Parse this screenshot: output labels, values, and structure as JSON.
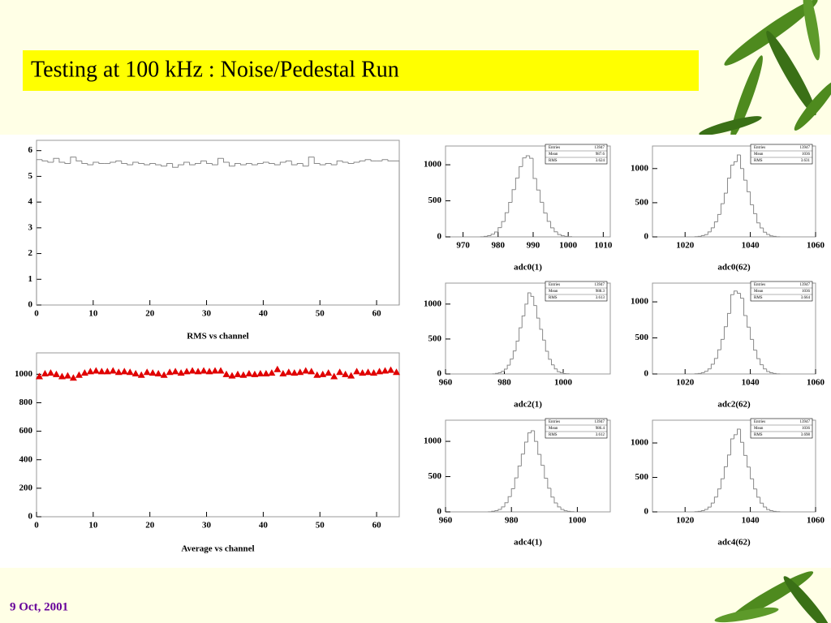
{
  "title": "Testing at 100 kHz : Noise/Pedestal Run",
  "date": "9 Oct, 2001",
  "chart_data": [
    {
      "type": "histogram",
      "x_label": "RMS vs channel",
      "color": "#888888",
      "bins": [
        0,
        1,
        2,
        3,
        4,
        5,
        6,
        7,
        8,
        9,
        10,
        11,
        12,
        13,
        14,
        15,
        16,
        17,
        18,
        19,
        20,
        21,
        22,
        23,
        24,
        25,
        26,
        27,
        28,
        29,
        30,
        31,
        32,
        33,
        34,
        35,
        36,
        37,
        38,
        39,
        40,
        41,
        42,
        43,
        44,
        45,
        46,
        47,
        48,
        49,
        50,
        51,
        52,
        53,
        54,
        55,
        56,
        57,
        58,
        59,
        60,
        61,
        62,
        63,
        64
      ],
      "counts": [
        5.65,
        5.6,
        5.55,
        5.7,
        5.55,
        5.5,
        5.75,
        5.6,
        5.5,
        5.45,
        5.55,
        5.5,
        5.5,
        5.55,
        5.6,
        5.5,
        5.45,
        5.55,
        5.5,
        5.45,
        5.5,
        5.45,
        5.4,
        5.5,
        5.35,
        5.45,
        5.55,
        5.45,
        5.5,
        5.6,
        5.5,
        5.45,
        5.7,
        5.55,
        5.4,
        5.5,
        5.45,
        5.5,
        5.45,
        5.5,
        5.55,
        5.5,
        5.45,
        5.55,
        5.6,
        5.45,
        5.5,
        5.4,
        5.75,
        5.5,
        5.45,
        5.5,
        5.45,
        5.6,
        5.55,
        5.5,
        5.55,
        5.6,
        5.65,
        5.6,
        5.6,
        5.65,
        5.6,
        5.6
      ],
      "xlim": [
        0,
        64
      ],
      "xticks": [
        0,
        10,
        20,
        30,
        40,
        50,
        60
      ],
      "ylim": [
        0,
        6.4
      ],
      "yticks": [
        0,
        1,
        2,
        3,
        4,
        5,
        6
      ]
    },
    {
      "type": "scatter",
      "x_label": "Average vs channel",
      "color": "#e00000",
      "x": [
        0.5,
        1.5,
        2.5,
        3.5,
        4.5,
        5.5,
        6.5,
        7.5,
        8.5,
        9.5,
        10.5,
        11.5,
        12.5,
        13.5,
        14.5,
        15.5,
        16.5,
        17.5,
        18.5,
        19.5,
        20.5,
        21.5,
        22.5,
        23.5,
        24.5,
        25.5,
        26.5,
        27.5,
        28.5,
        29.5,
        30.5,
        31.5,
        32.5,
        33.5,
        34.5,
        35.5,
        36.5,
        37.5,
        38.5,
        39.5,
        40.5,
        41.5,
        42.5,
        43.5,
        44.5,
        45.5,
        46.5,
        47.5,
        48.5,
        49.5,
        50.5,
        51.5,
        52.5,
        53.5,
        54.5,
        55.5,
        56.5,
        57.5,
        58.5,
        59.5,
        60.5,
        61.5,
        62.5,
        63.5
      ],
      "values": [
        985,
        1005,
        1010,
        1000,
        985,
        990,
        975,
        995,
        1010,
        1020,
        1025,
        1020,
        1020,
        1025,
        1015,
        1020,
        1015,
        1005,
        995,
        1015,
        1010,
        1005,
        995,
        1015,
        1020,
        1010,
        1020,
        1025,
        1020,
        1025,
        1020,
        1025,
        1025,
        1000,
        990,
        1000,
        995,
        1005,
        1000,
        1005,
        1005,
        1010,
        1035,
        1005,
        1015,
        1010,
        1015,
        1025,
        1020,
        995,
        1000,
        1010,
        985,
        1015,
        1000,
        990,
        1020,
        1010,
        1015,
        1010,
        1020,
        1025,
        1030,
        1015
      ],
      "xlim": [
        0,
        64
      ],
      "xticks": [
        0,
        10,
        20,
        30,
        40,
        50,
        60
      ],
      "ylim": [
        0,
        1150
      ],
      "yticks": [
        0,
        200,
        400,
        600,
        800,
        1000
      ]
    },
    {
      "type": "histogram",
      "x_label": "adc0(1)",
      "color": "#888888",
      "stats": [
        {
          "label": "Entries",
          "value": 13947
        },
        {
          "label": "Mean",
          "value": 987.6
        },
        {
          "label": "RMS",
          "value": 3.624
        }
      ],
      "bins": [
        975,
        976,
        977,
        978,
        979,
        980,
        981,
        982,
        983,
        984,
        985,
        986,
        987,
        988,
        989,
        990,
        991,
        992,
        993,
        994,
        995,
        996,
        997,
        998,
        999,
        1000,
        1001
      ],
      "counts": [
        2,
        7,
        17,
        36,
        68,
        128,
        212,
        335,
        478,
        655,
        815,
        975,
        1095,
        1125,
        1090,
        810,
        650,
        480,
        330,
        215,
        125,
        70,
        33,
        16,
        7,
        3
      ],
      "xlim": [
        965,
        1012
      ],
      "xticks": [
        970,
        980,
        990,
        1000,
        1010
      ],
      "ylim": [
        0,
        1260
      ],
      "yticks": [
        0,
        500,
        1000
      ]
    },
    {
      "type": "histogram",
      "x_label": "adc0(62)",
      "color": "#888888",
      "stats": [
        {
          "label": "Entries",
          "value": 13947
        },
        {
          "label": "Mean",
          "value": 1036
        },
        {
          "label": "RMS",
          "value": 3.631
        }
      ],
      "bins": [
        1023,
        1024,
        1025,
        1026,
        1027,
        1028,
        1029,
        1030,
        1031,
        1032,
        1033,
        1034,
        1035,
        1036,
        1037,
        1038,
        1039,
        1040,
        1041,
        1042,
        1043,
        1044,
        1045,
        1046,
        1047,
        1048,
        1049
      ],
      "counts": [
        3,
        8,
        19,
        33,
        72,
        132,
        220,
        328,
        485,
        640,
        860,
        1050,
        1100,
        1200,
        1000,
        830,
        660,
        470,
        340,
        205,
        130,
        68,
        36,
        15,
        8,
        2
      ],
      "xlim": [
        1010,
        1060
      ],
      "xticks": [
        1020,
        1040,
        1060
      ],
      "ylim": [
        0,
        1330
      ],
      "yticks": [
        0,
        500,
        1000
      ]
    },
    {
      "type": "histogram",
      "x_label": "adc2(1)",
      "color": "#888888",
      "stats": [
        {
          "label": "Entries",
          "value": 13947
        },
        {
          "label": "Mean",
          "value": 988.3
        },
        {
          "label": "RMS",
          "value": 3.613
        }
      ],
      "bins": [
        976,
        977,
        978,
        979,
        980,
        981,
        982,
        983,
        984,
        985,
        986,
        987,
        988,
        989,
        990,
        991,
        992,
        993,
        994,
        995,
        996,
        997,
        998,
        999,
        1000,
        1001,
        1002
      ],
      "counts": [
        2,
        8,
        18,
        37,
        70,
        126,
        214,
        330,
        470,
        660,
        830,
        1000,
        1160,
        1110,
        980,
        800,
        640,
        485,
        325,
        210,
        130,
        72,
        32,
        18,
        6,
        3
      ],
      "xlim": [
        960,
        1016
      ],
      "xticks": [
        960,
        980,
        1000
      ],
      "ylim": [
        0,
        1300
      ],
      "yticks": [
        0,
        500,
        1000
      ]
    },
    {
      "type": "histogram",
      "x_label": "adc2(62)",
      "color": "#888888",
      "stats": [
        {
          "label": "Entries",
          "value": 13947
        },
        {
          "label": "Mean",
          "value": 1036
        },
        {
          "label": "RMS",
          "value": 3.664
        }
      ],
      "bins": [
        1023,
        1024,
        1025,
        1026,
        1027,
        1028,
        1029,
        1030,
        1031,
        1032,
        1033,
        1034,
        1035,
        1036,
        1037,
        1038,
        1039,
        1040,
        1041,
        1042,
        1043,
        1044,
        1045,
        1046,
        1047,
        1048,
        1049
      ],
      "counts": [
        3,
        7,
        18,
        36,
        70,
        135,
        215,
        335,
        480,
        655,
        840,
        1100,
        1150,
        1120,
        1050,
        810,
        650,
        480,
        330,
        212,
        128,
        70,
        34,
        17,
        7,
        2
      ],
      "xlim": [
        1010,
        1060
      ],
      "xticks": [
        1020,
        1040,
        1060
      ],
      "ylim": [
        0,
        1260
      ],
      "yticks": [
        0,
        500,
        1000
      ]
    },
    {
      "type": "histogram",
      "x_label": "adc4(1)",
      "color": "#888888",
      "stats": [
        {
          "label": "Entries",
          "value": 13947
        },
        {
          "label": "Mean",
          "value": 986.4
        },
        {
          "label": "RMS",
          "value": 3.612
        }
      ],
      "bins": [
        973,
        974,
        975,
        976,
        977,
        978,
        979,
        980,
        981,
        982,
        983,
        984,
        985,
        986,
        987,
        988,
        989,
        990,
        991,
        992,
        993,
        994,
        995,
        996,
        997,
        998,
        999
      ],
      "counts": [
        2,
        8,
        17,
        35,
        71,
        130,
        216,
        328,
        482,
        650,
        820,
        990,
        1120,
        1150,
        1000,
        815,
        660,
        478,
        335,
        210,
        126,
        71,
        35,
        16,
        7,
        3
      ],
      "xlim": [
        960,
        1010
      ],
      "xticks": [
        960,
        980,
        1000
      ],
      "ylim": [
        0,
        1300
      ],
      "yticks": [
        0,
        500,
        1000
      ]
    },
    {
      "type": "histogram",
      "x_label": "adc4(62)",
      "color": "#888888",
      "stats": [
        {
          "label": "Entries",
          "value": 13947
        },
        {
          "label": "Mean",
          "value": 1036
        },
        {
          "label": "RMS",
          "value": 3.698
        }
      ],
      "bins": [
        1023,
        1024,
        1025,
        1026,
        1027,
        1028,
        1029,
        1030,
        1031,
        1032,
        1033,
        1034,
        1035,
        1036,
        1037,
        1038,
        1039,
        1040,
        1041,
        1042,
        1043,
        1044,
        1045,
        1046,
        1047,
        1048,
        1049
      ],
      "counts": [
        3,
        8,
        18,
        36,
        69,
        128,
        215,
        332,
        480,
        655,
        825,
        1060,
        1120,
        1200,
        1010,
        820,
        650,
        480,
        332,
        214,
        127,
        70,
        34,
        17,
        8,
        3
      ],
      "xlim": [
        1010,
        1060
      ],
      "xticks": [
        1020,
        1040,
        1060
      ],
      "ylim": [
        0,
        1330
      ],
      "yticks": [
        0,
        500,
        1000
      ]
    }
  ]
}
